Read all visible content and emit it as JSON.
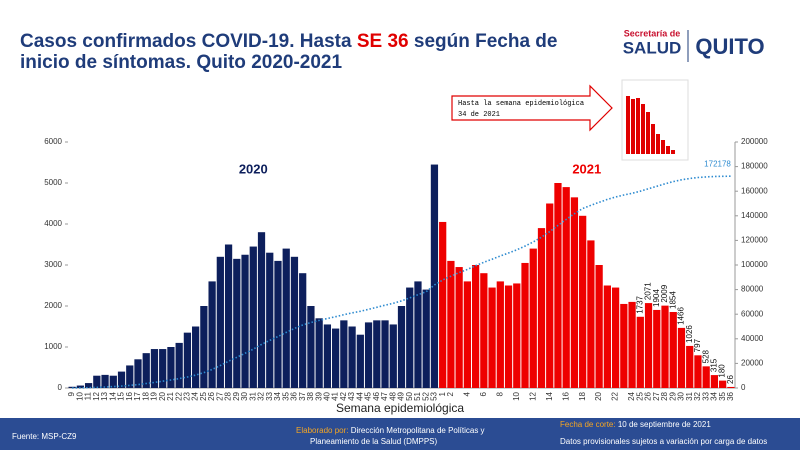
{
  "header": {
    "title": [
      "Casos confirmados COVID-19. Hasta ",
      "SE 36",
      " según Fecha de",
      "inicio de síntomas. Quito 2020-2021"
    ],
    "logo_left": [
      "Secretaría de",
      "SALUD"
    ],
    "logo_right": "QUITO"
  },
  "inset": {
    "text": [
      "Hasta la semana epidemiológica",
      "34 de 2021"
    ]
  },
  "chart_data": {
    "type": "bar",
    "x_label": "Semana epidemiológica",
    "categories": [
      "9",
      "10",
      "11",
      "12",
      "13",
      "14",
      "15",
      "16",
      "17",
      "18",
      "19",
      "20",
      "21",
      "22",
      "23",
      "24",
      "25",
      "26",
      "27",
      "28",
      "29",
      "30",
      "31",
      "32",
      "33",
      "34",
      "35",
      "36",
      "37",
      "38",
      "39",
      "40",
      "41",
      "42",
      "43",
      "44",
      "45",
      "46",
      "47",
      "48",
      "49",
      "50",
      "51",
      "52",
      "53",
      "1",
      "2",
      null,
      "4",
      null,
      "6",
      null,
      "8",
      null,
      "10",
      null,
      "12",
      null,
      "14",
      null,
      "16",
      null,
      "18",
      null,
      "20",
      null,
      "22",
      null,
      "24",
      "25",
      "26",
      "27",
      "28",
      "29",
      "30",
      "31",
      "32",
      "33",
      "34",
      "35",
      "36"
    ],
    "series": [
      {
        "name": "2020",
        "color": "#0d1f5c",
        "values": [
          30,
          60,
          120,
          300,
          320,
          300,
          400,
          550,
          700,
          850,
          950,
          950,
          1000,
          1100,
          1350,
          1500,
          2000,
          2600,
          3200,
          3500,
          3150,
          3250,
          3450,
          3800,
          3300,
          3100,
          3400,
          3200,
          2800,
          2000,
          1700,
          1550,
          1450,
          1650,
          1500,
          1300,
          1600,
          1650,
          1650,
          1550,
          2000,
          2450,
          2600,
          2400,
          5450,
          null,
          null,
          null,
          null,
          null,
          null,
          null,
          null,
          null,
          null,
          null,
          null,
          null,
          null,
          null,
          null,
          null,
          null,
          null,
          null,
          null,
          null,
          null,
          null,
          null,
          null,
          null,
          null,
          null,
          null,
          null,
          null,
          null,
          null,
          null,
          null
        ]
      },
      {
        "name": "2021",
        "color": "#ee0000",
        "values": [
          null,
          null,
          null,
          null,
          null,
          null,
          null,
          null,
          null,
          null,
          null,
          null,
          null,
          null,
          null,
          null,
          null,
          null,
          null,
          null,
          null,
          null,
          null,
          null,
          null,
          null,
          null,
          null,
          null,
          null,
          null,
          null,
          null,
          null,
          null,
          null,
          null,
          null,
          null,
          null,
          null,
          null,
          null,
          null,
          null,
          4050,
          3100,
          2950,
          2600,
          3000,
          2800,
          2450,
          2600,
          2500,
          2550,
          3050,
          3400,
          3900,
          4500,
          5000,
          4900,
          4650,
          4200,
          3600,
          3000,
          2500,
          2450,
          2050,
          2100,
          1737,
          2071,
          1904,
          2009,
          1854,
          1466,
          1026,
          797,
          528,
          315,
          180,
          26
        ],
        "value_labels": [
          null,
          null,
          null,
          null,
          null,
          null,
          null,
          null,
          null,
          null,
          null,
          null,
          null,
          null,
          null,
          null,
          null,
          null,
          null,
          null,
          null,
          null,
          null,
          null,
          null,
          null,
          null,
          null,
          null,
          null,
          null,
          null,
          null,
          null,
          null,
          null,
          null,
          null,
          null,
          null,
          null,
          null,
          null,
          null,
          null,
          null,
          null,
          null,
          null,
          null,
          null,
          null,
          null,
          null,
          null,
          null,
          null,
          null,
          null,
          null,
          null,
          null,
          null,
          null,
          null,
          null,
          null,
          null,
          null,
          "1737",
          "2071",
          "1904",
          "2009",
          "1854",
          "1466",
          "1026",
          "797",
          "528",
          "315",
          "180",
          "26"
        ]
      },
      {
        "type": "line",
        "axis": "y2",
        "color": "#2e8bd0",
        "values": [
          30,
          90,
          210,
          510,
          830,
          1130,
          1530,
          2080,
          2780,
          3630,
          4580,
          5530,
          6530,
          7630,
          8980,
          10480,
          12480,
          15080,
          18280,
          21780,
          24930,
          28180,
          31630,
          35430,
          38730,
          41830,
          45230,
          48430,
          51230,
          53230,
          54930,
          56480,
          57930,
          59580,
          61080,
          62380,
          63980,
          65630,
          67280,
          68830,
          70830,
          73280,
          75880,
          78280,
          83730,
          87780,
          90880,
          93830,
          96430,
          99430,
          102230,
          104680,
          107280,
          109780,
          112330,
          115380,
          118780,
          122680,
          127180,
          132180,
          137080,
          141730,
          145930,
          148500,
          151000,
          153300,
          155300,
          156900,
          158265,
          160002,
          162073,
          163977,
          165986,
          167840,
          169306,
          170332,
          171129,
          171657,
          171972,
          172152,
          172178
        ],
        "value_labels": [
          null,
          null,
          null,
          null,
          null,
          null,
          null,
          null,
          null,
          null,
          null,
          null,
          null,
          null,
          null,
          null,
          null,
          null,
          null,
          null,
          null,
          null,
          null,
          null,
          null,
          null,
          null,
          null,
          null,
          null,
          null,
          null,
          null,
          null,
          null,
          null,
          null,
          null,
          null,
          null,
          null,
          null,
          null,
          null,
          null,
          null,
          null,
          null,
          null,
          null,
          null,
          null,
          null,
          null,
          null,
          null,
          null,
          null,
          null,
          null,
          null,
          null,
          null,
          null,
          null,
          null,
          null,
          null,
          null,
          null,
          null,
          null,
          null,
          null,
          null,
          null,
          null,
          null,
          null,
          null,
          "172178"
        ]
      }
    ],
    "ylim": [
      0,
      6000
    ],
    "yticks": [
      0,
      1000,
      2000,
      3000,
      4000,
      5000,
      6000
    ],
    "y2lim": [
      0,
      200000
    ],
    "y2ticks": [
      0,
      20000,
      40000,
      60000,
      80000,
      100000,
      120000,
      140000,
      160000,
      180000,
      200000
    ]
  },
  "footer": {
    "source": "Fuente: MSP-CZ9",
    "made_by_label": "Elaborado por:",
    "made_by": [
      " Dirección Metropolitana de Políticas y",
      "Planeamiento de la Salud (DMPPS)"
    ],
    "cutoff_label": "Fecha de corte:",
    "cutoff": " 10 de septiembre de 2021",
    "note": "Datos provisionales sujetos a variación por carga de datos"
  }
}
